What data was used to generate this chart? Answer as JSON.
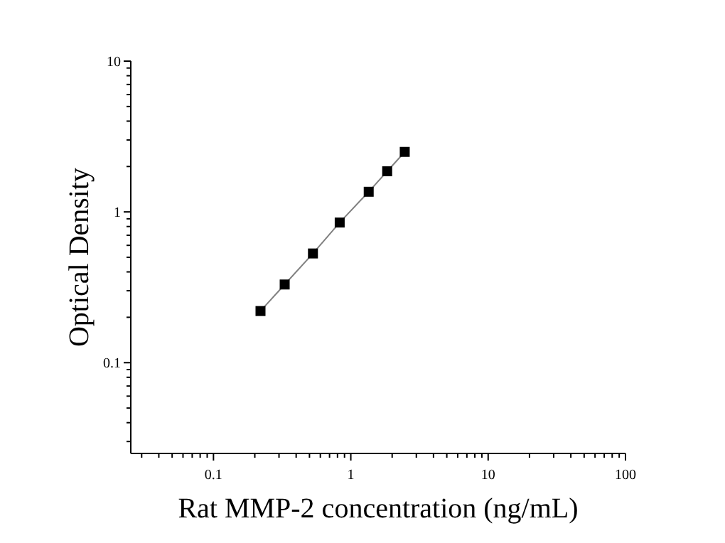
{
  "chart_data": {
    "type": "line",
    "xlabel": "Rat MMP-2 concentration (ng/mL)",
    "ylabel": "Optical Density",
    "log": "xy",
    "marker": "square",
    "line_style": "solid",
    "xlim": [
      0.025,
      100
    ],
    "ylim": [
      0.025,
      10
    ],
    "xticks": [
      {
        "value": 0.03,
        "label": null
      },
      {
        "value": 0.04,
        "label": null
      },
      {
        "value": 0.05,
        "label": null
      },
      {
        "value": 0.06,
        "label": null
      },
      {
        "value": 0.07,
        "label": null
      },
      {
        "value": 0.08,
        "label": null
      },
      {
        "value": 0.09,
        "label": null
      },
      0.1,
      {
        "value": 0.2,
        "label": null
      },
      {
        "value": 0.3,
        "label": null
      },
      {
        "value": 0.4,
        "label": null
      },
      {
        "value": 0.5,
        "label": null
      },
      {
        "value": 0.6,
        "label": null
      },
      {
        "value": 0.7,
        "label": null
      },
      {
        "value": 0.8,
        "label": null
      },
      {
        "value": 0.9,
        "label": null
      },
      1,
      {
        "value": 2,
        "label": null
      },
      {
        "value": 3,
        "label": null
      },
      {
        "value": 4,
        "label": null
      },
      {
        "value": 5,
        "label": null
      },
      {
        "value": 6,
        "label": null
      },
      {
        "value": 7,
        "label": null
      },
      {
        "value": 8,
        "label": null
      },
      {
        "value": 9,
        "label": null
      },
      10,
      {
        "value": 20,
        "label": null
      },
      {
        "value": 30,
        "label": null
      },
      {
        "value": 40,
        "label": null
      },
      {
        "value": 50,
        "label": null
      },
      {
        "value": 60,
        "label": null
      },
      {
        "value": 70,
        "label": null
      },
      {
        "value": 80,
        "label": null
      },
      {
        "value": 90,
        "label": null
      },
      100
    ],
    "yticks": [
      {
        "value": 0.03,
        "label": null
      },
      {
        "value": 0.04,
        "label": null
      },
      {
        "value": 0.05,
        "label": null
      },
      {
        "value": 0.06,
        "label": null
      },
      {
        "value": 0.07,
        "label": null
      },
      {
        "value": 0.08,
        "label": null
      },
      {
        "value": 0.09,
        "label": null
      },
      0.1,
      {
        "value": 0.2,
        "label": null
      },
      {
        "value": 0.3,
        "label": null
      },
      {
        "value": 0.4,
        "label": null
      },
      {
        "value": 0.5,
        "label": null
      },
      {
        "value": 0.6,
        "label": null
      },
      {
        "value": 0.7,
        "label": null
      },
      {
        "value": 0.8,
        "label": null
      },
      {
        "value": 0.9,
        "label": null
      },
      1,
      {
        "value": 2,
        "label": null
      },
      {
        "value": 3,
        "label": null
      },
      {
        "value": 4,
        "label": null
      },
      {
        "value": 5,
        "label": null
      },
      {
        "value": 6,
        "label": null
      },
      {
        "value": 7,
        "label": null
      },
      {
        "value": 8,
        "label": null
      },
      {
        "value": 9,
        "label": null
      },
      10
    ],
    "x": [
      0.22,
      0.33,
      0.53,
      0.83,
      1.35,
      1.84,
      2.47
    ],
    "series": [
      {
        "color": "#000000",
        "values": [
          0.22,
          0.33,
          0.53,
          0.85,
          1.36,
          1.86,
          2.5
        ]
      }
    ]
  }
}
